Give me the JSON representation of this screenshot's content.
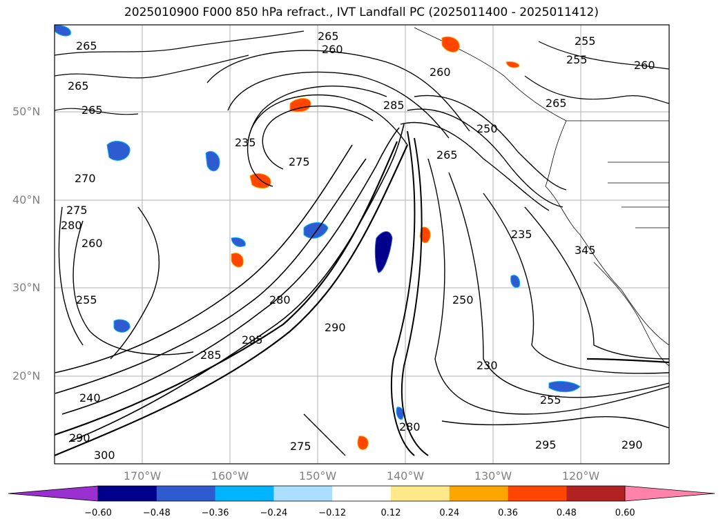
{
  "title": "2025010900 F000 850 hPa refract., IVT Landfall PC (2025011400 - 2025011412)",
  "lat_labels": [
    "50°N",
    "40°N",
    "30°N",
    "20°N"
  ],
  "lon_labels": [
    "170°W",
    "160°W",
    "150°W",
    "140°W",
    "130°W",
    "120°W"
  ],
  "contour_labels": [
    "265",
    "265",
    "265",
    "260",
    "255",
    "255",
    "260",
    "265",
    "265",
    "285",
    "260",
    "250",
    "275",
    "265",
    "235",
    "270",
    "280",
    "275",
    "260",
    "285",
    "295",
    "280",
    "255",
    "290",
    "250",
    "230",
    "235",
    "345",
    "255",
    "240",
    "300",
    "290",
    "275",
    "280",
    "295",
    "290"
  ],
  "colorbar": {
    "ticks": [
      "−0.60",
      "−0.48",
      "−0.36",
      "−0.24",
      "−0.12",
      "0.12",
      "0.24",
      "0.36",
      "0.48",
      "0.60"
    ],
    "colors": [
      "#9b30d0",
      "#00008b",
      "#2e5cd0",
      "#00b4ff",
      "#aadfff",
      "#ffffff",
      "#ffe88a",
      "#ffa500",
      "#ff4500",
      "#b22222",
      "#ff82aa"
    ]
  },
  "colors": {
    "grid": "#b0b0b0",
    "contour": "#000000",
    "label": "#808080"
  }
}
